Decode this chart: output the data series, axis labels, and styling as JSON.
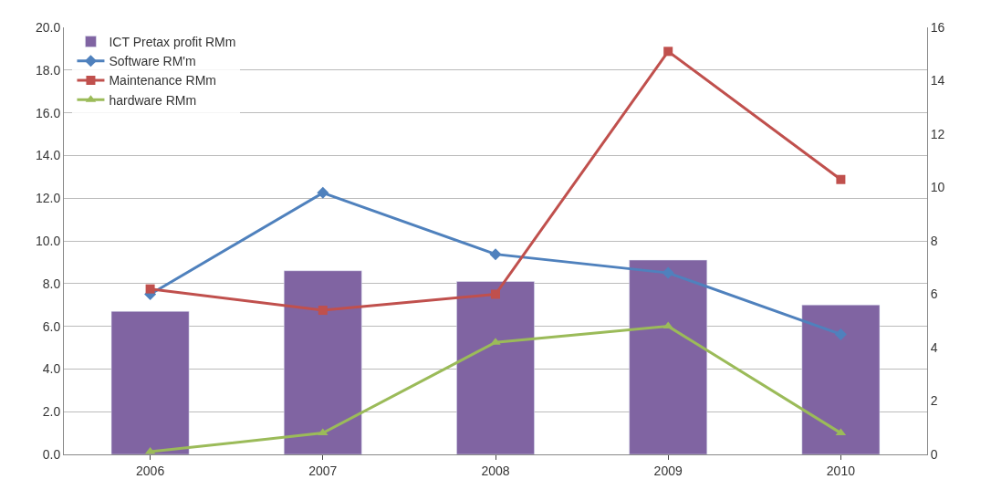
{
  "chart_data": {
    "type": "bar",
    "categories": [
      "2006",
      "2007",
      "2008",
      "2009",
      "2010"
    ],
    "series": [
      {
        "name": "ICT Pretax profit RMm",
        "color": "#8064a2",
        "values": [
          6.7,
          8.6,
          8.1,
          9.1,
          7.0
        ]
      },
      {
        "name": "Software RM'm",
        "type": "line",
        "axis": "y2",
        "marker": "diamond",
        "color": "#4f81bd",
        "values": [
          6.0,
          9.8,
          7.5,
          6.8,
          4.5
        ]
      },
      {
        "name": "Maintenance RMm",
        "type": "line",
        "axis": "y2",
        "marker": "square",
        "color": "#c0504d",
        "values": [
          6.2,
          5.4,
          6.0,
          15.1,
          10.3
        ]
      },
      {
        "name": "hardware RMm",
        "type": "line",
        "axis": "y2",
        "marker": "triangle",
        "color": "#9bbb59",
        "values": [
          0.1,
          0.8,
          4.2,
          4.8,
          0.8
        ]
      }
    ],
    "ylim": [
      0,
      20
    ],
    "yticks": [
      {
        "value": 0,
        "label": "0.0"
      },
      {
        "value": 2,
        "label": "2.0"
      },
      {
        "value": 4,
        "label": "4.0"
      },
      {
        "value": 6,
        "label": "6.0"
      },
      {
        "value": 8,
        "label": "8.0"
      },
      {
        "value": 10,
        "label": "10.0"
      },
      {
        "value": 12,
        "label": "12.0"
      },
      {
        "value": 14,
        "label": "14.0"
      },
      {
        "value": 16,
        "label": "16.0"
      },
      {
        "value": 18,
        "label": "18.0"
      },
      {
        "value": 20,
        "label": "20.0"
      }
    ],
    "y2lim": [
      0,
      16
    ],
    "y2ticks": [
      0,
      2,
      4,
      6,
      8,
      10,
      12,
      14,
      16
    ],
    "grid": "y",
    "legend": "top left",
    "line_style": "solid"
  }
}
